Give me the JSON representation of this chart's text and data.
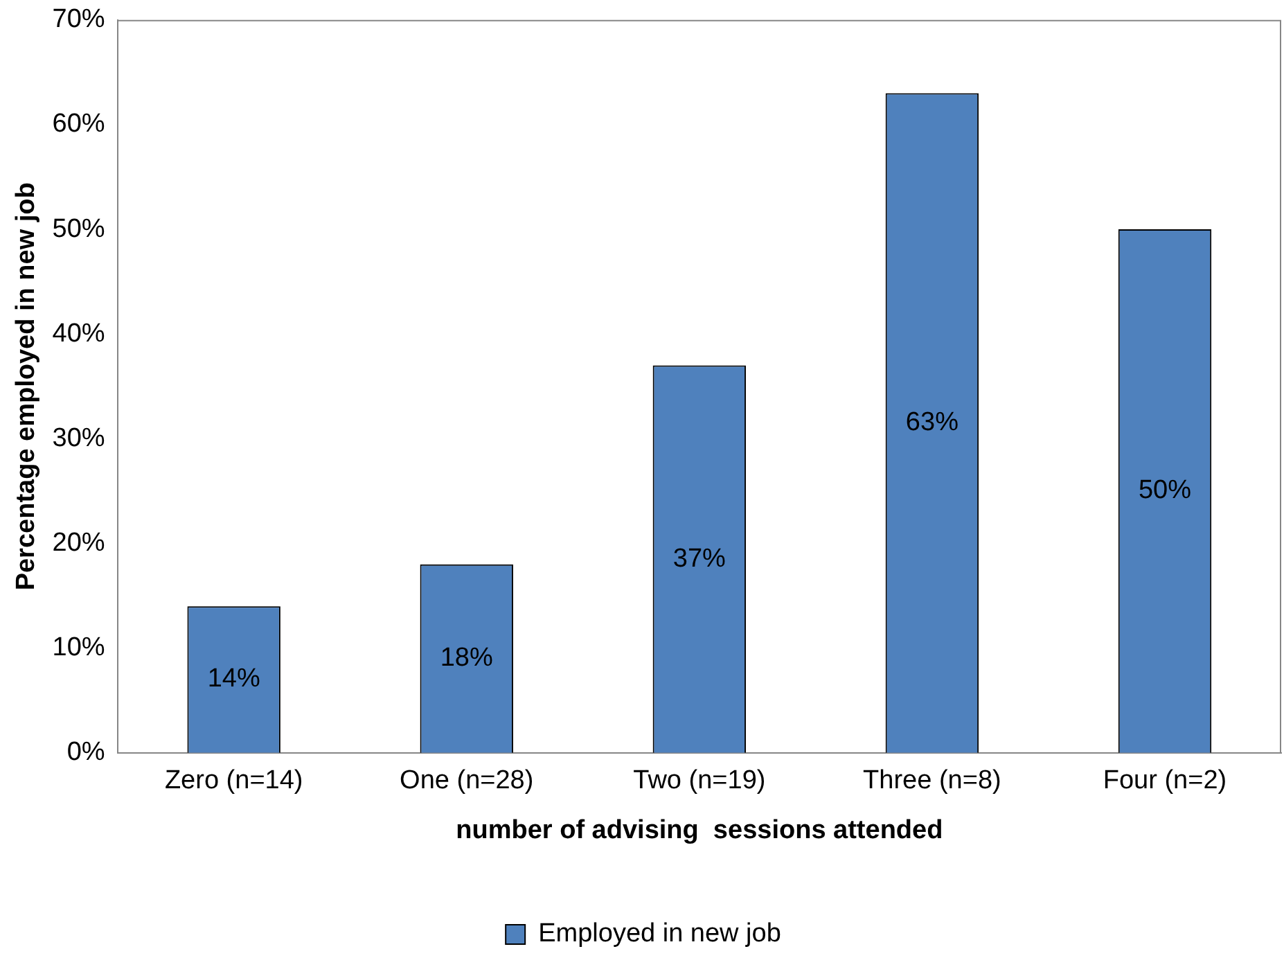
{
  "chart_data": {
    "type": "bar",
    "xlabel": "number of advising  sessions attended",
    "ylabel": "Percentage employed in new job",
    "categories": [
      "Zero (n=14)",
      "One (n=28)",
      "Two (n=19)",
      "Three (n=8)",
      "Four (n=2)"
    ],
    "series": [
      {
        "name": "Employed in new job",
        "color": "#4f81bd",
        "values": [
          14,
          18,
          37,
          63,
          50
        ],
        "value_labels": [
          "14%",
          "18%",
          "37%",
          "63%",
          "50%"
        ]
      }
    ],
    "ylim": [
      0,
      70
    ],
    "yticks": [
      {
        "value": 0,
        "label": "0%"
      },
      {
        "value": 10,
        "label": "10%"
      },
      {
        "value": 20,
        "label": "20%"
      },
      {
        "value": 30,
        "label": "30%"
      },
      {
        "value": 40,
        "label": "40%"
      },
      {
        "value": 50,
        "label": "50%"
      },
      {
        "value": 60,
        "label": "60%"
      },
      {
        "value": 70,
        "label": "70%"
      }
    ],
    "grid": false,
    "legend": "bottom"
  }
}
